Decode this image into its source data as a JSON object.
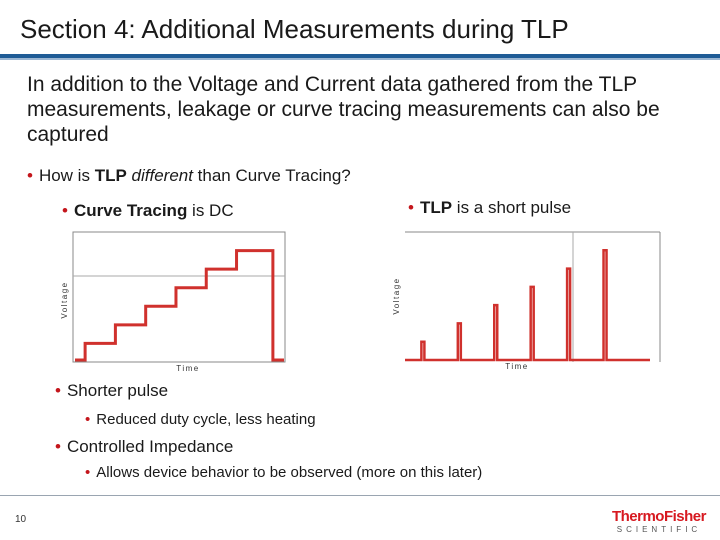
{
  "slide": {
    "title": "Section 4: Additional Measurements during TLP",
    "intro": "In addition to the Voltage and Current data gathered from the TLP measurements, leakage or curve tracing measurements can also be captured",
    "question": {
      "pre": "How is ",
      "bold": "TLP",
      "italic": " different",
      "post": " than Curve Tracing?"
    },
    "curve_bullet": {
      "bold": "Curve Tracing",
      "post": " is DC"
    },
    "tlp_bullet": {
      "bold": "TLP",
      "post": " is a short pulse"
    },
    "shorter_pulse": "Shorter pulse",
    "reduced_duty": "Reduced duty cycle, less heating",
    "controlled_impedance": "Controlled Impedance",
    "allows_device": "Allows device behavior to be observed (more on this later)",
    "page_number": "10",
    "logo_top": "ThermoFisher",
    "logo_bottom": "SCIENTIFIC"
  },
  "colors": {
    "accent": "#d0312d",
    "rule": "#1f5c96"
  },
  "chart_data": [
    {
      "type": "line",
      "title": "",
      "xlabel": "Time",
      "ylabel": "Voltage",
      "shape": "staircase",
      "steps": [
        1,
        2,
        3,
        4,
        5,
        6
      ],
      "ylim": [
        0,
        7
      ],
      "xlim": [
        0,
        7
      ]
    },
    {
      "type": "line",
      "title": "",
      "xlabel": "Time",
      "ylabel": "Voltage",
      "shape": "pulses",
      "pulses": [
        1,
        2,
        3,
        4,
        5,
        6
      ],
      "ylim": [
        0,
        7
      ],
      "xlim": [
        0,
        7
      ]
    }
  ]
}
